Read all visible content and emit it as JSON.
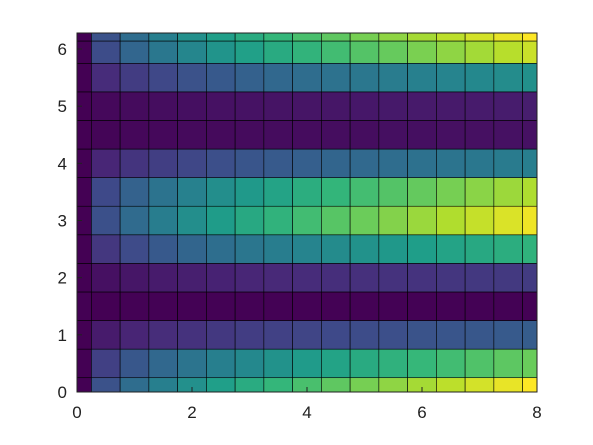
{
  "chart_data": {
    "type": "heatmap",
    "colormap": "viridis",
    "x": [
      0,
      0.5,
      1,
      1.5,
      2,
      2.5,
      3,
      3.5,
      4,
      4.5,
      5,
      5.5,
      6,
      6.5,
      7,
      7.5,
      8
    ],
    "y": [
      0,
      0.5,
      1,
      1.5,
      2,
      2.5,
      3,
      3.5,
      4,
      4.5,
      5,
      5.5,
      6,
      6.28
    ],
    "z": [
      [
        0,
        0.71,
        1,
        1.22,
        1.41,
        1.58,
        1.73,
        1.87,
        2,
        2.12,
        2.24,
        2.35,
        2.45,
        2.55,
        2.65,
        2.74,
        2.83
      ],
      [
        0,
        0.54,
        0.77,
        0.94,
        1.09,
        1.22,
        1.33,
        1.44,
        1.54,
        1.63,
        1.72,
        1.81,
        1.89,
        1.96,
        2.04,
        2.11,
        2.18
      ],
      [
        0,
        0.21,
        0.29,
        0.36,
        0.41,
        0.46,
        0.51,
        0.55,
        0.58,
        0.62,
        0.65,
        0.68,
        0.72,
        0.74,
        0.77,
        0.8,
        0.83
      ],
      [
        0,
        0,
        0.01,
        0.01,
        0.01,
        0.01,
        0.01,
        0.01,
        0.01,
        0.01,
        0.01,
        0.01,
        0.01,
        0.01,
        0.01,
        0.01,
        0.01
      ],
      [
        0,
        0.12,
        0.17,
        0.21,
        0.24,
        0.27,
        0.3,
        0.32,
        0.35,
        0.37,
        0.39,
        0.41,
        0.42,
        0.44,
        0.46,
        0.47,
        0.49
      ],
      [
        0,
        0.45,
        0.64,
        0.79,
        0.91,
        1.02,
        1.11,
        1.2,
        1.28,
        1.36,
        1.44,
        1.51,
        1.57,
        1.64,
        1.7,
        1.76,
        1.82
      ],
      [
        0,
        0.69,
        0.98,
        1.2,
        1.39,
        1.55,
        1.7,
        1.83,
        1.96,
        2.08,
        2.19,
        2.3,
        2.4,
        2.5,
        2.59,
        2.68,
        2.77
      ],
      [
        0,
        0.62,
        0.88,
        1.08,
        1.24,
        1.39,
        1.52,
        1.64,
        1.76,
        1.86,
        1.97,
        2.06,
        2.15,
        2.24,
        2.33,
        2.41,
        2.49
      ],
      [
        0,
        0.3,
        0.43,
        0.52,
        0.6,
        0.68,
        0.74,
        0.8,
        0.85,
        0.91,
        0.95,
        1,
        1.05,
        1.09,
        1.13,
        1.17,
        1.21
      ],
      [
        0,
        0.03,
        0.05,
        0.06,
        0.07,
        0.07,
        0.08,
        0.09,
        0.09,
        0.1,
        0.1,
        0.11,
        0.11,
        0.12,
        0.12,
        0.13,
        0.13
      ],
      [
        0,
        0.06,
        0.08,
        0.1,
        0.11,
        0.13,
        0.14,
        0.15,
        0.16,
        0.17,
        0.18,
        0.19,
        0.2,
        0.2,
        0.21,
        0.22,
        0.23
      ],
      [
        0,
        0.35,
        0.5,
        0.61,
        0.71,
        0.79,
        0.87,
        0.94,
        1,
        1.06,
        1.12,
        1.18,
        1.23,
        1.28,
        1.33,
        1.37,
        1.42
      ],
      [
        0,
        0.65,
        0.92,
        1.13,
        1.3,
        1.46,
        1.6,
        1.72,
        1.84,
        1.96,
        2.06,
        2.16,
        2.26,
        2.35,
        2.44,
        2.53,
        2.61
      ],
      [
        0,
        0.71,
        1,
        1.22,
        1.41,
        1.58,
        1.73,
        1.87,
        2,
        2.12,
        2.24,
        2.35,
        2.45,
        2.55,
        2.65,
        2.74,
        2.83
      ]
    ],
    "clim": [
      0,
      2.83
    ],
    "xlim": [
      0,
      8
    ],
    "ylim": [
      0,
      6.28
    ],
    "xticks": [
      0,
      2,
      4,
      6,
      8
    ],
    "yticks": [
      0,
      1,
      2,
      3,
      4,
      5,
      6
    ]
  }
}
